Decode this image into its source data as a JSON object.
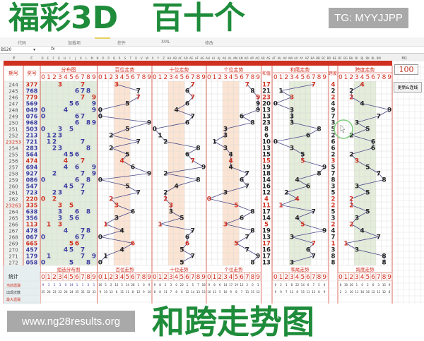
{
  "watermarks": {
    "top_right": "TG: MYYJJPP",
    "bottom_left": "www.ng28results.org"
  },
  "ribbon": {
    "groups": [
      "代码",
      "加载项",
      "控件",
      "XML",
      "修改"
    ]
  },
  "formula_bar": {
    "name_box": "BS20",
    "fx": "fx",
    "value": ""
  },
  "column_letters": [
    "E",
    "C",
    "D",
    "E",
    "F",
    "G",
    "H",
    "I",
    "J",
    "K",
    "L",
    "M",
    "N",
    "O",
    "P",
    "Q",
    "R",
    "S",
    "T",
    "U",
    "V",
    "W",
    "X",
    "Y",
    "Z",
    "AA",
    "AB",
    "AC",
    "AD",
    "AE",
    "AF",
    "AG",
    "AH",
    "AI",
    "AJ",
    "AK",
    "AL",
    "AM",
    "AN",
    "AO",
    "AP",
    "AQ",
    "AR",
    "AS",
    "AT",
    "AU",
    "AV",
    "AW",
    "AX",
    "AY",
    "AZ",
    "BA",
    "BB",
    "BC",
    "BD",
    "BE",
    "BF",
    "BG",
    "BH",
    "BI",
    "BJ",
    "BK",
    "BL",
    "BM",
    "BQ"
  ],
  "headers": {
    "issue": "期号",
    "number": "奖号",
    "dist": "分布图",
    "hundreds": "百位走势",
    "tens": "十位走势",
    "units": "个位走势",
    "sum": "和值",
    "sum_tail": "和尾走势",
    "span": "跨度",
    "span_trend": "跨度走势"
  },
  "digits": [
    "0",
    "1",
    "2",
    "3",
    "4",
    "5",
    "6",
    "7",
    "8",
    "9"
  ],
  "rows": [
    {
      "issue": "244",
      "number": "377",
      "sum": "17",
      "span": "4",
      "pair": true
    },
    {
      "issue": "245",
      "number": "768",
      "sum": "21",
      "span": "2",
      "pair": false
    },
    {
      "issue": "246",
      "number": "779",
      "sum": "23",
      "span": "2",
      "pair": true
    },
    {
      "issue": "247",
      "number": "569",
      "sum": "20",
      "span": "4",
      "pair": false
    },
    {
      "issue": "248",
      "number": "049",
      "sum": "13",
      "span": "9",
      "pair": false
    },
    {
      "issue": "249",
      "number": "076",
      "sum": "13",
      "span": "7",
      "pair": false
    },
    {
      "issue": "250",
      "number": "968",
      "sum": "23",
      "span": "3",
      "pair": false
    },
    {
      "issue": "251",
      "number": "503",
      "sum": "8",
      "span": "5",
      "pair": false
    },
    {
      "issue": "252",
      "number": "213",
      "sum": "6",
      "span": "2",
      "pair": false
    },
    {
      "issue": "23253",
      "number": "721",
      "sum": "10",
      "span": "6",
      "pair": false
    },
    {
      "issue": "254",
      "number": "283",
      "sum": "13",
      "span": "6",
      "pair": false
    },
    {
      "issue": "255",
      "number": "564",
      "sum": "15",
      "span": "2",
      "pair": false
    },
    {
      "issue": "256",
      "number": "474",
      "sum": "15",
      "span": "3",
      "pair": true
    },
    {
      "issue": "257",
      "number": "694",
      "sum": "19",
      "span": "5",
      "pair": false
    },
    {
      "issue": "258",
      "number": "927",
      "sum": "18",
      "span": "7",
      "pair": false
    },
    {
      "issue": "259",
      "number": "086",
      "sum": "14",
      "span": "8",
      "pair": false
    },
    {
      "issue": "260",
      "number": "547",
      "sum": "16",
      "span": "3",
      "pair": false
    },
    {
      "issue": "261",
      "number": "723",
      "sum": "12",
      "span": "5",
      "pair": false
    },
    {
      "issue": "262",
      "number": "220",
      "sum": "4",
      "span": "2",
      "pair": true
    },
    {
      "issue": "23263",
      "number": "335",
      "sum": "11",
      "span": "2",
      "pair": true
    },
    {
      "issue": "264",
      "number": "638",
      "sum": "17",
      "span": "5",
      "pair": false
    },
    {
      "issue": "265",
      "number": "356",
      "sum": "14",
      "span": "3",
      "pair": false
    },
    {
      "issue": "266",
      "number": "113",
      "sum": "5",
      "span": "2",
      "pair": true
    },
    {
      "issue": "267",
      "number": "478",
      "sum": "19",
      "span": "4",
      "pair": false
    },
    {
      "issue": "268",
      "number": "067",
      "sum": "13",
      "span": "7",
      "pair": false
    },
    {
      "issue": "269",
      "number": "665",
      "sum": "17",
      "span": "1",
      "pair": true
    },
    {
      "issue": "270",
      "number": "457",
      "sum": "16",
      "span": "3",
      "pair": false
    },
    {
      "issue": "271",
      "number": "179",
      "sum": "17",
      "span": "8",
      "pair": false
    },
    {
      "issue": "272",
      "number": "058",
      "sum": "13",
      "span": "8",
      "pair": false
    }
  ],
  "footer": {
    "stats_label": "统计",
    "titles": [
      "组选分布图",
      "百位走势",
      "十位走势",
      "个位走势",
      "和尾走势",
      "跨度走势"
    ],
    "row_labels": [
      "当前遗漏",
      "出现次数",
      "最大遗漏"
    ],
    "stats": {
      "dist": [
        [
          "9",
          "3",
          "2",
          "3",
          "0",
          "14",
          "1",
          "1",
          "0",
          "1"
        ],
        [
          "25",
          "26",
          "23",
          "22",
          "26",
          "24",
          "25",
          "33",
          "32",
          "33"
        ]
      ],
      "hundreds": [
        [
          "16",
          "5",
          "2",
          "13",
          "5",
          "14",
          "28",
          "1",
          "0",
          "9"
        ],
        [
          "9",
          "10",
          "12",
          "8",
          "11",
          "11",
          "8",
          "12",
          "9",
          "10"
        ]
      ],
      "tens": [
        [
          "9",
          "8",
          "2",
          "3",
          "0",
          "22",
          "1",
          "5",
          "7",
          "18"
        ],
        [
          "8",
          "8",
          "11",
          "7",
          "8",
          "6",
          "12",
          "14",
          "13",
          "13"
        ]
      ],
      "units": [
        [
          "9",
          "8",
          "6",
          "14",
          "17",
          "19",
          "13",
          "2",
          "0",
          "1"
        ],
        [
          "10",
          "13",
          "5",
          "10",
          "9",
          "8",
          "7",
          "11",
          "15",
          "12"
        ]
      ],
      "sum_tail": [
        [
          "0",
          "2",
          "1",
          "8",
          "22",
          "14",
          "6",
          "7",
          "5",
          "4"
        ],
        [
          "9",
          "9",
          "7",
          "12",
          "8",
          "15",
          "11",
          "12",
          "8",
          "9"
        ]
      ],
      "span_trend": [
        [
          "8",
          "30",
          "26",
          "1",
          "0",
          "2",
          "6",
          "3",
          "15",
          "9"
        ],
        [
          "2",
          "2",
          "10",
          "11",
          "16",
          "16",
          "12",
          "11",
          "12",
          "8"
        ]
      ]
    }
  },
  "side": {
    "value": "100",
    "button": "更新&连线"
  },
  "overlay": [
    "福彩3D",
    "百十个",
    "和跨走势图"
  ],
  "colors": {
    "red": "#d03020",
    "blue": "#3a3aa0",
    "green": "#1e8c3a",
    "line": "#4a4a88"
  }
}
